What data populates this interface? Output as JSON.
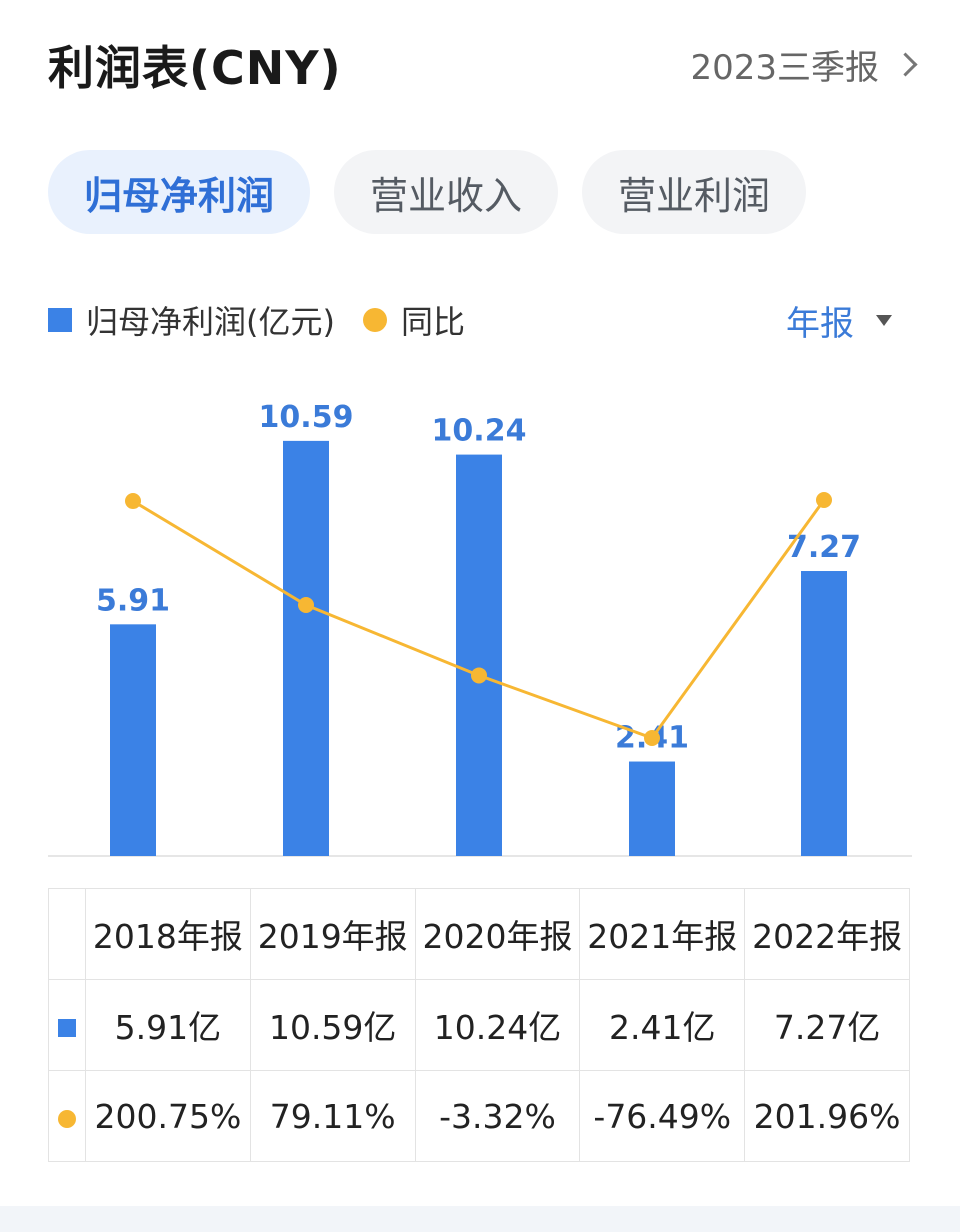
{
  "header": {
    "title": "利润表(CNY)",
    "period": "2023三季报"
  },
  "tabs": [
    {
      "label": "归母净利润",
      "active": true
    },
    {
      "label": "营业收入",
      "active": false
    },
    {
      "label": "营业利润",
      "active": false
    }
  ],
  "legend": {
    "bar_label": "归母净利润(亿元)",
    "line_label": "同比",
    "range_label": "年报"
  },
  "colors": {
    "bar": "#3b82e6",
    "line": "#f7b733",
    "value_label": "#3b7bd8",
    "positive": "#e04b4b",
    "negative": "#29a36a"
  },
  "chart_data": {
    "type": "bar",
    "categories": [
      "2018年报",
      "2019年报",
      "2020年报",
      "2021年报",
      "2022年报"
    ],
    "series": [
      {
        "name": "归母净利润(亿元)",
        "type": "bar",
        "values": [
          5.91,
          10.59,
          10.24,
          2.41,
          7.27
        ]
      },
      {
        "name": "同比",
        "type": "line",
        "values": [
          200.75,
          79.11,
          -3.32,
          -76.49,
          201.96
        ]
      }
    ],
    "value_labels": [
      "5.91",
      "10.59",
      "10.24",
      "2.41",
      "7.27"
    ],
    "legend_position": "top-left",
    "grid": false
  },
  "table": {
    "headers": [
      "2018年报",
      "2019年报",
      "2020年报",
      "2021年报",
      "2022年报"
    ],
    "profit_row": [
      "5.91亿",
      "10.59亿",
      "10.24亿",
      "2.41亿",
      "7.27亿"
    ],
    "yoy_row": [
      "200.75%",
      "79.11%",
      "-3.32%",
      "-76.49%",
      "201.96%"
    ]
  }
}
